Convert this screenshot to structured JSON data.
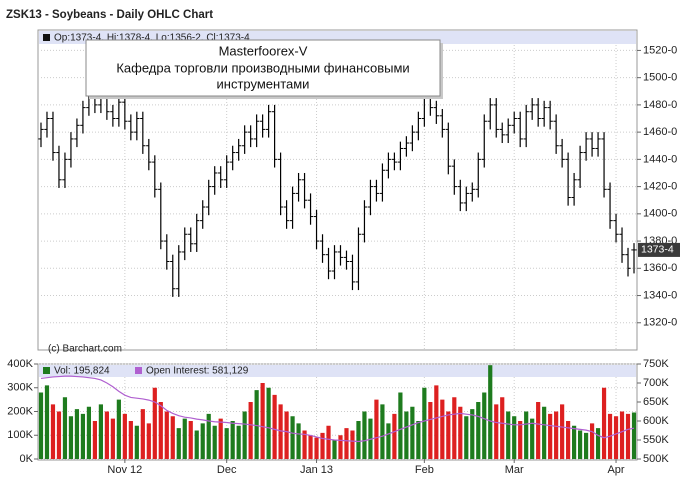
{
  "chart_data": [
    {
      "type": "ohlc",
      "title": "ZSK13 - Soybeans - Daily OHLC Chart",
      "legend": "Op:1373-4, Hi:1378-4, Lo:1356-2, Cl:1373-4",
      "last_price": {
        "value": 1373.5,
        "label": "1373-4"
      },
      "credit": "(c) Barchart.com",
      "color": "#000000",
      "open": [
        1455,
        1462,
        1470,
        1445,
        1425,
        1440,
        1455,
        1465,
        1478,
        1485,
        1480,
        1488,
        1475,
        1470,
        1482,
        1468,
        1460,
        1470,
        1450,
        1438,
        1418,
        1380,
        1365,
        1345,
        1372,
        1385,
        1378,
        1395,
        1405,
        1420,
        1430,
        1425,
        1438,
        1445,
        1450,
        1460,
        1455,
        1468,
        1462,
        1475,
        1440,
        1405,
        1395,
        1415,
        1425,
        1410,
        1398,
        1380,
        1370,
        1358,
        1372,
        1368,
        1365,
        1350,
        1385,
        1405,
        1420,
        1415,
        1432,
        1440,
        1438,
        1448,
        1452,
        1460,
        1470,
        1485,
        1478,
        1472,
        1462,
        1435,
        1420,
        1408,
        1415,
        1418,
        1440,
        1468,
        1480,
        1462,
        1458,
        1465,
        1470,
        1455,
        1475,
        1480,
        1470,
        1478,
        1468,
        1450,
        1440,
        1412,
        1425,
        1445,
        1455,
        1448,
        1455,
        1418,
        1395,
        1385,
        1370,
        1373.5
      ],
      "high": [
        1467,
        1475,
        1475,
        1450,
        1445,
        1460,
        1470,
        1483,
        1490,
        1490,
        1493,
        1493,
        1480,
        1487,
        1487,
        1473,
        1475,
        1475,
        1455,
        1443,
        1423,
        1385,
        1370,
        1377,
        1390,
        1390,
        1400,
        1410,
        1425,
        1435,
        1435,
        1443,
        1450,
        1455,
        1465,
        1465,
        1473,
        1473,
        1480,
        1480,
        1445,
        1410,
        1420,
        1430,
        1430,
        1415,
        1403,
        1385,
        1375,
        1377,
        1377,
        1373,
        1370,
        1390,
        1410,
        1425,
        1425,
        1437,
        1445,
        1445,
        1453,
        1457,
        1465,
        1475,
        1490,
        1490,
        1483,
        1477,
        1467,
        1440,
        1425,
        1420,
        1423,
        1445,
        1473,
        1485,
        1485,
        1467,
        1470,
        1475,
        1475,
        1480,
        1485,
        1485,
        1483,
        1483,
        1473,
        1455,
        1445,
        1430,
        1450,
        1460,
        1460,
        1460,
        1460,
        1423,
        1400,
        1390,
        1375,
        1378.5
      ],
      "low": [
        1449,
        1456,
        1439,
        1419,
        1419,
        1434,
        1449,
        1459,
        1472,
        1474,
        1474,
        1469,
        1464,
        1464,
        1462,
        1454,
        1454,
        1444,
        1432,
        1412,
        1374,
        1359,
        1339,
        1339,
        1366,
        1372,
        1372,
        1389,
        1399,
        1414,
        1419,
        1419,
        1432,
        1439,
        1444,
        1449,
        1449,
        1456,
        1456,
        1434,
        1399,
        1389,
        1389,
        1409,
        1404,
        1392,
        1374,
        1364,
        1352,
        1352,
        1362,
        1359,
        1344,
        1344,
        1379,
        1399,
        1409,
        1409,
        1426,
        1432,
        1432,
        1442,
        1446,
        1454,
        1464,
        1472,
        1466,
        1456,
        1429,
        1414,
        1402,
        1402,
        1409,
        1412,
        1434,
        1462,
        1456,
        1452,
        1452,
        1459,
        1449,
        1449,
        1469,
        1464,
        1464,
        1462,
        1444,
        1434,
        1406,
        1406,
        1419,
        1439,
        1442,
        1442,
        1412,
        1389,
        1379,
        1364,
        1354,
        1356.25
      ],
      "close": [
        1462,
        1470,
        1445,
        1425,
        1440,
        1455,
        1465,
        1478,
        1485,
        1480,
        1488,
        1475,
        1470,
        1482,
        1468,
        1460,
        1470,
        1450,
        1438,
        1418,
        1380,
        1365,
        1345,
        1372,
        1385,
        1378,
        1395,
        1405,
        1420,
        1430,
        1425,
        1438,
        1445,
        1450,
        1460,
        1455,
        1468,
        1462,
        1475,
        1440,
        1405,
        1395,
        1415,
        1425,
        1410,
        1398,
        1380,
        1370,
        1358,
        1372,
        1368,
        1365,
        1350,
        1385,
        1405,
        1420,
        1415,
        1432,
        1440,
        1438,
        1448,
        1452,
        1460,
        1470,
        1485,
        1478,
        1472,
        1462,
        1435,
        1420,
        1408,
        1415,
        1418,
        1440,
        1468,
        1480,
        1462,
        1458,
        1465,
        1470,
        1455,
        1475,
        1480,
        1470,
        1478,
        1468,
        1450,
        1440,
        1412,
        1425,
        1445,
        1455,
        1448,
        1455,
        1418,
        1395,
        1385,
        1370,
        1360,
        1373.5
      ],
      "ylim": [
        1300,
        1535
      ],
      "yticks": [
        {
          "value": 1320,
          "label": "1320-0"
        },
        {
          "value": 1340,
          "label": "1340-0"
        },
        {
          "value": 1360,
          "label": "1360-0"
        },
        {
          "value": 1380,
          "label": "1380-0"
        },
        {
          "value": 1400,
          "label": "1400-0"
        },
        {
          "value": 1420,
          "label": "1420-0"
        },
        {
          "value": 1440,
          "label": "1440-0"
        },
        {
          "value": 1460,
          "label": "1460-0"
        },
        {
          "value": 1480,
          "label": "1480-0"
        },
        {
          "value": 1500,
          "label": "1500-0"
        },
        {
          "value": 1520,
          "label": "1520-0"
        }
      ],
      "grid": true
    },
    {
      "type": "volume",
      "categories": [
        null,
        null,
        null,
        null,
        null,
        null,
        null,
        null,
        null,
        null,
        null,
        null,
        null,
        null,
        "Nov 12",
        null,
        null,
        null,
        null,
        null,
        null,
        null,
        null,
        null,
        null,
        null,
        null,
        null,
        null,
        null,
        null,
        "Dec",
        null,
        null,
        null,
        null,
        null,
        null,
        null,
        null,
        null,
        null,
        null,
        null,
        null,
        null,
        "Jan 13",
        null,
        null,
        null,
        null,
        null,
        null,
        null,
        null,
        null,
        null,
        null,
        null,
        null,
        null,
        null,
        null,
        null,
        "Feb",
        null,
        null,
        null,
        null,
        null,
        null,
        null,
        null,
        null,
        null,
        null,
        null,
        null,
        null,
        "Mar",
        null,
        null,
        null,
        null,
        null,
        null,
        null,
        null,
        null,
        null,
        null,
        null,
        null,
        null,
        null,
        null,
        "Apr",
        null,
        null,
        null
      ],
      "series": [
        {
          "name": "Vol: 195,824",
          "type": "bar",
          "up_color": "#1e7b1e",
          "down_color": "#dd2020",
          "values": [
            280000,
            310000,
            230000,
            200000,
            260000,
            180000,
            210000,
            190000,
            220000,
            160000,
            230000,
            200000,
            170000,
            250000,
            190000,
            160000,
            140000,
            210000,
            150000,
            300000,
            240000,
            200000,
            180000,
            130000,
            170000,
            160000,
            120000,
            150000,
            190000,
            140000,
            170000,
            130000,
            160000,
            140000,
            200000,
            240000,
            290000,
            320000,
            300000,
            270000,
            230000,
            200000,
            180000,
            150000,
            120000,
            100000,
            90000,
            110000,
            140000,
            80000,
            100000,
            130000,
            120000,
            160000,
            200000,
            170000,
            250000,
            230000,
            150000,
            190000,
            280000,
            200000,
            220000,
            160000,
            300000,
            240000,
            310000,
            250000,
            200000,
            260000,
            220000,
            180000,
            210000,
            240000,
            280000,
            395000,
            230000,
            260000,
            200000,
            180000,
            160000,
            200000,
            170000,
            240000,
            220000,
            190000,
            200000,
            230000,
            160000,
            140000,
            120000,
            110000,
            150000,
            130000,
            300000,
            190000,
            180000,
            200000,
            190000,
            195824
          ]
        },
        {
          "name": "Open Interest: 581,129",
          "type": "line",
          "color": "#b060d0",
          "axis": "y2",
          "values": [
            712000,
            714000,
            716000,
            717000,
            718000,
            718000,
            717000,
            716000,
            714000,
            712000,
            708000,
            700000,
            690000,
            678000,
            668000,
            662000,
            660000,
            658000,
            655000,
            650000,
            640000,
            628000,
            620000,
            614000,
            610000,
            608000,
            605000,
            603000,
            600000,
            598000,
            597000,
            596000,
            594000,
            593000,
            592000,
            590000,
            588000,
            585000,
            582000,
            578000,
            574000,
            572000,
            568000,
            566000,
            565000,
            562000,
            558000,
            554000,
            552000,
            550000,
            549000,
            548000,
            547000,
            546000,
            548000,
            552000,
            556000,
            560000,
            566000,
            572000,
            578000,
            584000,
            590000,
            596000,
            600000,
            604000,
            608000,
            612000,
            616000,
            618000,
            620000,
            618000,
            616000,
            612000,
            606000,
            600000,
            596000,
            594000,
            592000,
            590000,
            590000,
            592000,
            594000,
            592000,
            590000,
            588000,
            586000,
            584000,
            582000,
            580000,
            578000,
            576000,
            572000,
            562000,
            556000,
            560000,
            566000,
            572000,
            578000,
            581129
          ]
        }
      ],
      "ylim": [
        0,
        400000
      ],
      "yticks": [
        {
          "value": 0,
          "label": "0K"
        },
        {
          "value": 100000,
          "label": "100K"
        },
        {
          "value": 200000,
          "label": "200K"
        },
        {
          "value": 300000,
          "label": "300K"
        },
        {
          "value": 400000,
          "label": "400K"
        }
      ],
      "y2lim": [
        500000,
        750000
      ],
      "y2ticks": [
        {
          "value": 500000,
          "label": "500K"
        },
        {
          "value": 550000,
          "label": "550K"
        },
        {
          "value": 600000,
          "label": "600K"
        },
        {
          "value": 650000,
          "label": "650K"
        },
        {
          "value": 700000,
          "label": "700K"
        },
        {
          "value": 750000,
          "label": "750K"
        }
      ],
      "grid": true
    }
  ],
  "annotation": {
    "title": "Masterfoorex-V",
    "lines": [
      "Кафедра торговли производными финансовыми",
      "инструментами"
    ]
  }
}
